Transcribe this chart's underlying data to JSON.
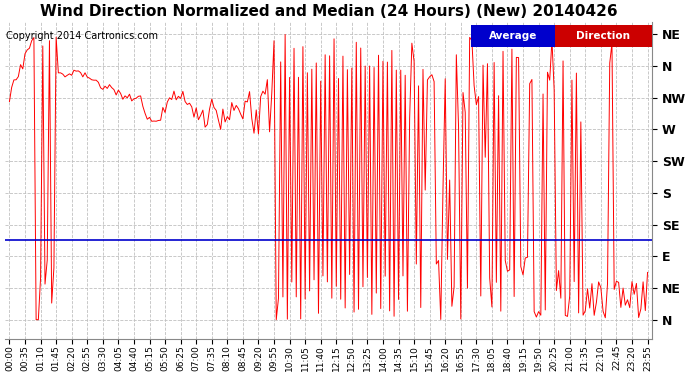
{
  "title": "Wind Direction Normalized and Median (24 Hours) (New) 20140426",
  "copyright": "Copyright 2014 Cartronics.com",
  "bg_color": "#ffffff",
  "plot_bg_color": "#ffffff",
  "grid_color": "#c0c0c0",
  "line_color": "#ff0000",
  "median_color": "#0000cc",
  "median_value": 6.5,
  "ytick_labels": [
    "NE",
    "N",
    "NW",
    "W",
    "SW",
    "S",
    "SE",
    "E",
    "NE",
    "N"
  ],
  "ytick_positions": [
    0,
    1,
    2,
    3,
    4,
    5,
    6,
    7,
    8,
    9
  ],
  "legend_avg_bg": "#0000cc",
  "legend_dir_bg": "#cc0000",
  "title_fontsize": 11,
  "copyright_fontsize": 7,
  "tick_fontsize": 6.5,
  "ytick_fontsize": 9
}
